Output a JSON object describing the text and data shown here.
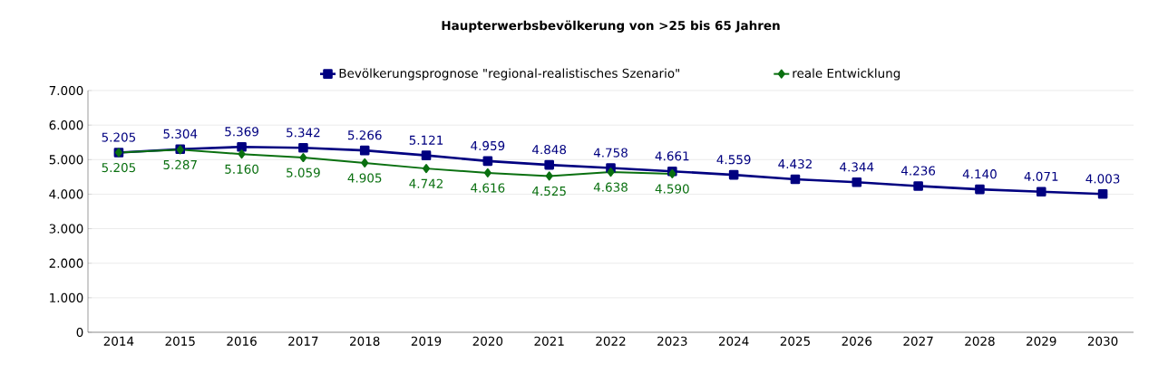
{
  "chart_data": {
    "type": "line",
    "title": "Haupterwerbsbevölkerung von >25 bis 65 Jahren",
    "categories": [
      "2014",
      "2015",
      "2016",
      "2017",
      "2018",
      "2019",
      "2020",
      "2021",
      "2022",
      "2023",
      "2024",
      "2025",
      "2026",
      "2027",
      "2028",
      "2029",
      "2030"
    ],
    "series": [
      {
        "name": "Bevölkerungsprognose \"regional-realistisches Szenario\"",
        "color": "#000080",
        "marker": "square",
        "values": [
          5205,
          5304,
          5369,
          5342,
          5266,
          5121,
          4959,
          4848,
          4758,
          4661,
          4559,
          4432,
          4344,
          4236,
          4140,
          4071,
          4003
        ],
        "value_labels": [
          "5.205",
          "5.304",
          "5.369",
          "5.342",
          "5.266",
          "5.121",
          "4.959",
          "4.848",
          "4.758",
          "4.661",
          "4.559",
          "4.432",
          "4.344",
          "4.236",
          "4.140",
          "4.071",
          "4.003"
        ]
      },
      {
        "name": "reale Entwicklung",
        "color": "#0a7010",
        "marker": "diamond",
        "values": [
          5205,
          5287,
          5160,
          5059,
          4905,
          4742,
          4616,
          4525,
          4638,
          4590,
          null,
          null,
          null,
          null,
          null,
          null,
          null
        ],
        "value_labels": [
          "5.205",
          "5.287",
          "5.160",
          "5.059",
          "4.905",
          "4.742",
          "4.616",
          "4.525",
          "4.638",
          "4.590",
          null,
          null,
          null,
          null,
          null,
          null,
          null
        ]
      }
    ],
    "ylim": [
      0,
      7000
    ],
    "yticks": [
      {
        "value": 0,
        "label": "0"
      },
      {
        "value": 1000,
        "label": "1.000"
      },
      {
        "value": 2000,
        "label": "2.000"
      },
      {
        "value": 3000,
        "label": "3.000"
      },
      {
        "value": 4000,
        "label": "4.000"
      },
      {
        "value": 5000,
        "label": "5.000"
      },
      {
        "value": 6000,
        "label": "6.000"
      },
      {
        "value": 7000,
        "label": "7.000"
      }
    ],
    "grid": "y",
    "legend": "top",
    "line_style": "solid"
  }
}
